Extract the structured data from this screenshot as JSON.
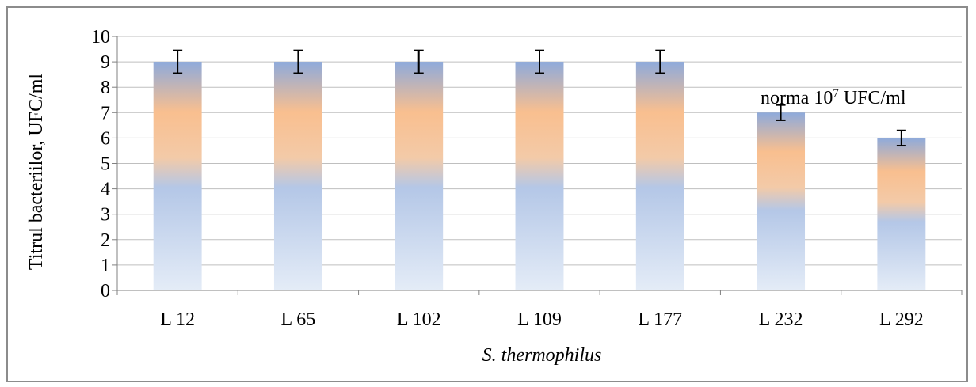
{
  "chart_data": {
    "type": "bar",
    "categories": [
      "L 12",
      "L 65",
      "L 102",
      "L 109",
      "L 177",
      "L 232",
      "L 292"
    ],
    "values": [
      9,
      9,
      9,
      9,
      9,
      7,
      6
    ],
    "error": [
      0.45,
      0.45,
      0.45,
      0.45,
      0.45,
      0.3,
      0.3
    ],
    "xlabel": "S. thermophilus",
    "ylabel": "Titrul bacteriilor, UFC/ml",
    "ylim": [
      0,
      10
    ],
    "yticks": [
      "0",
      "1",
      "2",
      "3",
      "4",
      "5",
      "6",
      "7",
      "8",
      "9",
      "10"
    ],
    "grid": true,
    "reference_line": {
      "value": 7.1,
      "label_prefix": "norma 10",
      "label_exponent": "7",
      "label_suffix": " UFC/ml"
    },
    "colors": {
      "bar_top": "#8eaadb",
      "bar_mid": "#f9bf8f",
      "bar_low": "#b4c7e7",
      "bar_bottom": "#e4ecf7",
      "grid": "#bfbfbf",
      "axis": "#808080",
      "reference_line": "#000000"
    }
  }
}
